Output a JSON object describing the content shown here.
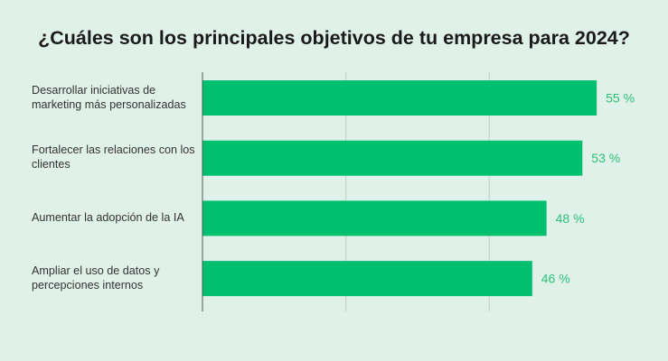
{
  "chart_data": {
    "type": "bar",
    "orientation": "horizontal",
    "title": "¿Cuáles son los principales objetivos de tu empresa para 2024?",
    "categories": [
      "Desarrollar iniciativas de marketing más personalizadas",
      "Fortalecer las relaciones con los clientes",
      "Aumentar la adopción de la IA",
      "Ampliar el uso de datos y percepciones internos"
    ],
    "values": [
      55,
      53,
      48,
      46
    ],
    "data_labels": [
      "55 %",
      "53 %",
      "48 %",
      "46 %"
    ],
    "xlim": [
      0,
      60
    ],
    "gridlines": [
      20,
      40
    ],
    "grid": true,
    "legend": "none",
    "colors": {
      "bar": "#00bf6f",
      "label": "#2dbf7a",
      "background": "#dff1e8",
      "grid": "#c2cfc8",
      "axis": "#555555"
    }
  }
}
